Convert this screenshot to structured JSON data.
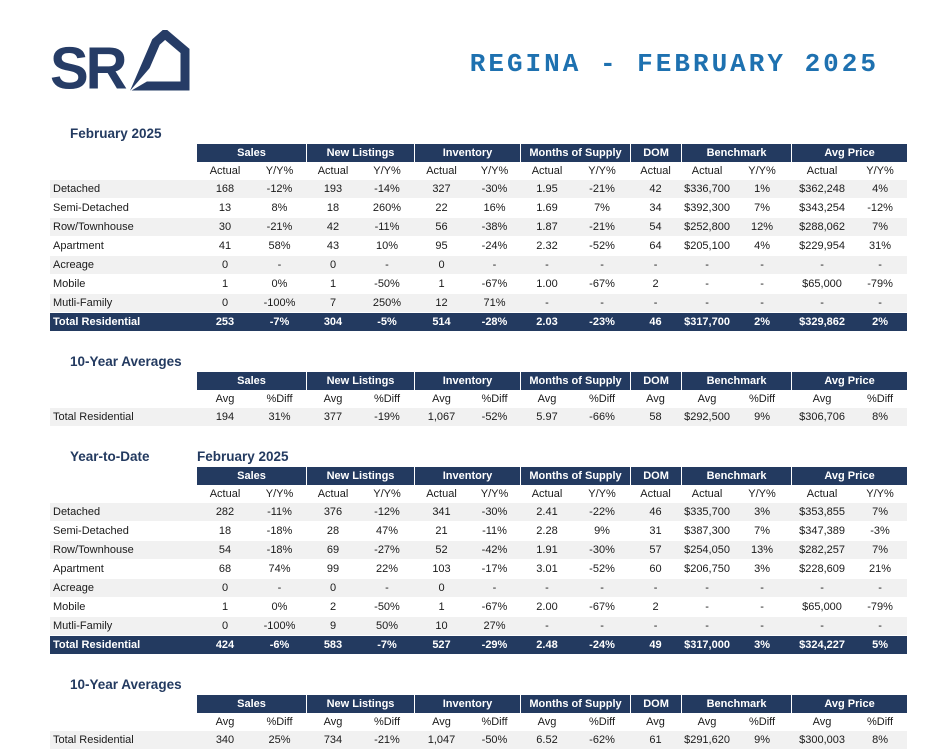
{
  "logo": {
    "text": "SR",
    "house_icon": "house-icon",
    "navy": "#263C66"
  },
  "title": "REGINA - FEBRUARY 2025",
  "colors": {
    "header_navy": "#233A60",
    "title_blue": "#1E71B0",
    "alt_row": "#F1F1F1"
  },
  "tables": [
    {
      "id": "monthly",
      "section_labels": [
        "February 2025"
      ],
      "groups": [
        {
          "label": "Sales",
          "span": 2
        },
        {
          "label": "New Listings",
          "span": 2
        },
        {
          "label": "Inventory",
          "span": 2
        },
        {
          "label": "Months of Supply",
          "span": 2
        },
        {
          "label": "DOM",
          "span": 1
        },
        {
          "label": "Benchmark",
          "span": 2
        },
        {
          "label": "Avg Price",
          "span": 2
        }
      ],
      "subheaders": [
        "Actual",
        "Y/Y%",
        "Actual",
        "Y/Y%",
        "Actual",
        "Y/Y%",
        "Actual",
        "Y/Y%",
        "Actual",
        "Actual",
        "Y/Y%",
        "Actual",
        "Y/Y%"
      ],
      "rows": [
        {
          "label": "Detached",
          "cells": [
            "168",
            "-12%",
            "193",
            "-14%",
            "327",
            "-30%",
            "1.95",
            "-21%",
            "42",
            "$336,700",
            "1%",
            "$362,248",
            "4%"
          ]
        },
        {
          "label": "Semi-Detached",
          "cells": [
            "13",
            "8%",
            "18",
            "260%",
            "22",
            "16%",
            "1.69",
            "7%",
            "34",
            "$392,300",
            "7%",
            "$343,254",
            "-12%"
          ]
        },
        {
          "label": "Row/Townhouse",
          "cells": [
            "30",
            "-21%",
            "42",
            "-11%",
            "56",
            "-38%",
            "1.87",
            "-21%",
            "54",
            "$252,800",
            "12%",
            "$288,062",
            "7%"
          ]
        },
        {
          "label": "Apartment",
          "cells": [
            "41",
            "58%",
            "43",
            "10%",
            "95",
            "-24%",
            "2.32",
            "-52%",
            "64",
            "$205,100",
            "4%",
            "$229,954",
            "31%"
          ]
        },
        {
          "label": "Acreage",
          "cells": [
            "0",
            "-",
            "0",
            "-",
            "0",
            "-",
            "-",
            "-",
            "-",
            "-",
            "-",
            "-",
            "-"
          ]
        },
        {
          "label": "Mobile",
          "cells": [
            "1",
            "0%",
            "1",
            "-50%",
            "1",
            "-67%",
            "1.00",
            "-67%",
            "2",
            "-",
            "-",
            "$65,000",
            "-79%"
          ]
        },
        {
          "label": "Mutli-Family",
          "cells": [
            "0",
            "-100%",
            "7",
            "250%",
            "12",
            "71%",
            "-",
            "-",
            "-",
            "-",
            "-",
            "-",
            "-"
          ]
        },
        {
          "label": "Total Residential",
          "total": true,
          "cells": [
            "253",
            "-7%",
            "304",
            "-5%",
            "514",
            "-28%",
            "2.03",
            "-23%",
            "46",
            "$317,700",
            "2%",
            "$329,862",
            "2%"
          ]
        }
      ]
    },
    {
      "id": "monthly-10yr",
      "section_labels": [
        "10-Year Averages"
      ],
      "groups": [
        {
          "label": "Sales",
          "span": 2
        },
        {
          "label": "New Listings",
          "span": 2
        },
        {
          "label": "Inventory",
          "span": 2
        },
        {
          "label": "Months of Supply",
          "span": 2
        },
        {
          "label": "DOM",
          "span": 1
        },
        {
          "label": "Benchmark",
          "span": 2
        },
        {
          "label": "Avg Price",
          "span": 2
        }
      ],
      "subheaders": [
        "Avg",
        "%Diff",
        "Avg",
        "%Diff",
        "Avg",
        "%Diff",
        "Avg",
        "%Diff",
        "Avg",
        "Avg",
        "%Diff",
        "Avg",
        "%Diff"
      ],
      "rows": [
        {
          "label": "Total Residential",
          "cells": [
            "194",
            "31%",
            "377",
            "-19%",
            "1,067",
            "-52%",
            "5.97",
            "-66%",
            "58",
            "$292,500",
            "9%",
            "$306,706",
            "8%"
          ]
        }
      ]
    },
    {
      "id": "ytd",
      "section_labels": [
        "Year-to-Date",
        "February 2025"
      ],
      "groups": [
        {
          "label": "Sales",
          "span": 2
        },
        {
          "label": "New Listings",
          "span": 2
        },
        {
          "label": "Inventory",
          "span": 2
        },
        {
          "label": "Months of Supply",
          "span": 2
        },
        {
          "label": "DOM",
          "span": 1
        },
        {
          "label": "Benchmark",
          "span": 2
        },
        {
          "label": "Avg Price",
          "span": 2
        }
      ],
      "subheaders": [
        "Actual",
        "Y/Y%",
        "Actual",
        "Y/Y%",
        "Actual",
        "Y/Y%",
        "Actual",
        "Y/Y%",
        "Actual",
        "Actual",
        "Y/Y%",
        "Actual",
        "Y/Y%"
      ],
      "rows": [
        {
          "label": "Detached",
          "cells": [
            "282",
            "-11%",
            "376",
            "-12%",
            "341",
            "-30%",
            "2.41",
            "-22%",
            "46",
            "$335,700",
            "3%",
            "$353,855",
            "7%"
          ]
        },
        {
          "label": "Semi-Detached",
          "cells": [
            "18",
            "-18%",
            "28",
            "47%",
            "21",
            "-11%",
            "2.28",
            "9%",
            "31",
            "$387,300",
            "7%",
            "$347,389",
            "-3%"
          ]
        },
        {
          "label": "Row/Townhouse",
          "cells": [
            "54",
            "-18%",
            "69",
            "-27%",
            "52",
            "-42%",
            "1.91",
            "-30%",
            "57",
            "$254,050",
            "13%",
            "$282,257",
            "7%"
          ]
        },
        {
          "label": "Apartment",
          "cells": [
            "68",
            "74%",
            "99",
            "22%",
            "103",
            "-17%",
            "3.01",
            "-52%",
            "60",
            "$206,750",
            "3%",
            "$228,609",
            "21%"
          ]
        },
        {
          "label": "Acreage",
          "cells": [
            "0",
            "-",
            "0",
            "-",
            "0",
            "-",
            "-",
            "-",
            "-",
            "-",
            "-",
            "-",
            "-"
          ]
        },
        {
          "label": "Mobile",
          "cells": [
            "1",
            "0%",
            "2",
            "-50%",
            "1",
            "-67%",
            "2.00",
            "-67%",
            "2",
            "-",
            "-",
            "$65,000",
            "-79%"
          ]
        },
        {
          "label": "Mutli-Family",
          "cells": [
            "0",
            "-100%",
            "9",
            "50%",
            "10",
            "27%",
            "-",
            "-",
            "-",
            "-",
            "-",
            "-",
            "-"
          ]
        },
        {
          "label": "Total Residential",
          "total": true,
          "cells": [
            "424",
            "-6%",
            "583",
            "-7%",
            "527",
            "-29%",
            "2.48",
            "-24%",
            "49",
            "$317,000",
            "3%",
            "$324,227",
            "5%"
          ]
        }
      ]
    },
    {
      "id": "ytd-10yr",
      "section_labels": [
        "10-Year Averages"
      ],
      "groups": [
        {
          "label": "Sales",
          "span": 2
        },
        {
          "label": "New Listings",
          "span": 2
        },
        {
          "label": "Inventory",
          "span": 2
        },
        {
          "label": "Months of Supply",
          "span": 2
        },
        {
          "label": "DOM",
          "span": 1
        },
        {
          "label": "Benchmark",
          "span": 2
        },
        {
          "label": "Avg Price",
          "span": 2
        }
      ],
      "subheaders": [
        "Avg",
        "%Diff",
        "Avg",
        "%Diff",
        "Avg",
        "%Diff",
        "Avg",
        "%Diff",
        "Avg",
        "Avg",
        "%Diff",
        "Avg",
        "%Diff"
      ],
      "rows": [
        {
          "label": "Total Residential",
          "cells": [
            "340",
            "25%",
            "734",
            "-21%",
            "1,047",
            "-50%",
            "6.52",
            "-62%",
            "61",
            "$291,620",
            "9%",
            "$300,003",
            "8%"
          ]
        }
      ]
    }
  ]
}
